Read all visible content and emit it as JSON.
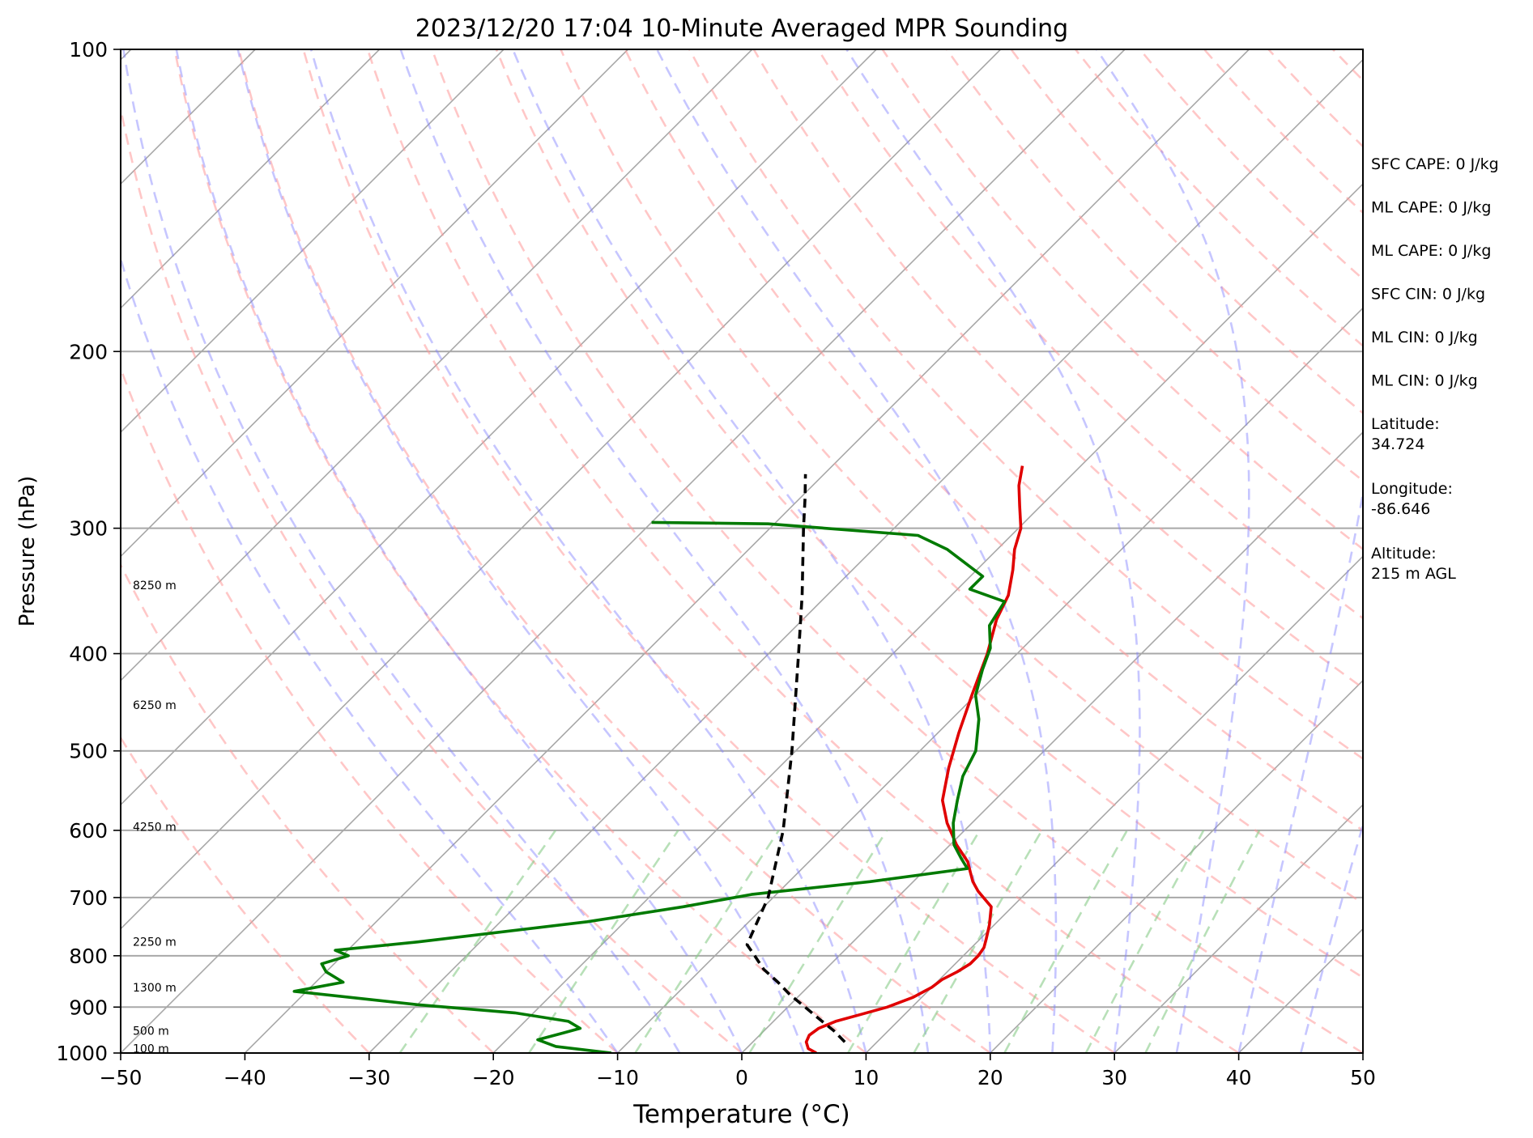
{
  "chart_data": {
    "type": "line",
    "title": "2023/12/20 17:04 10-Minute Averaged MPR Sounding",
    "xlabel": "Temperature (°C)",
    "ylabel": "Pressure (hPa)",
    "xlim": [
      -50,
      50
    ],
    "ylim": [
      1000,
      100
    ],
    "y_scale": "log",
    "x_ticks": [
      -50,
      -40,
      -30,
      -20,
      -10,
      0,
      10,
      20,
      30,
      40,
      50
    ],
    "x_tick_labels": [
      "−50",
      "−40",
      "−30",
      "−20",
      "−10",
      "0",
      "10",
      "20",
      "30",
      "40",
      "50"
    ],
    "y_ticks": [
      1000,
      900,
      800,
      700,
      600,
      500,
      400,
      300,
      200,
      100
    ],
    "y_tick_labels": [
      "1000",
      "900",
      "800",
      "700",
      "600",
      "500",
      "400",
      "300",
      "200",
      "100"
    ],
    "grid": true,
    "skew": 45,
    "colors": {
      "temperature": "#e00000",
      "dewpoint": "#007a00",
      "parcel": "#000000",
      "isotherm": "#a8a8a8",
      "dry_adiabat": "#ff9999",
      "moist_adiabat": "#8080ff",
      "mixing_ratio": "#88cc88",
      "grid": "#a8a8a8"
    },
    "series": [
      {
        "key": "temperature",
        "points": [
          [
            1000,
            6.0
          ],
          [
            990,
            5.0
          ],
          [
            975,
            4.3
          ],
          [
            960,
            4.0
          ],
          [
            945,
            4.2
          ],
          [
            930,
            5.0
          ],
          [
            915,
            6.5
          ],
          [
            900,
            8.0
          ],
          [
            880,
            9.3
          ],
          [
            860,
            10.0
          ],
          [
            845,
            10.2
          ],
          [
            830,
            10.8
          ],
          [
            815,
            11.2
          ],
          [
            800,
            11.2
          ],
          [
            785,
            11.0
          ],
          [
            770,
            10.5
          ],
          [
            745,
            9.6
          ],
          [
            715,
            8.3
          ],
          [
            690,
            6.0
          ],
          [
            675,
            4.8
          ],
          [
            660,
            3.8
          ],
          [
            645,
            2.8
          ],
          [
            620,
            0.5
          ],
          [
            590,
            -2.0
          ],
          [
            560,
            -4.2
          ],
          [
            520,
            -6.3
          ],
          [
            480,
            -8.3
          ],
          [
            440,
            -10.3
          ],
          [
            400,
            -12.4
          ],
          [
            370,
            -14.4
          ],
          [
            350,
            -15.4
          ],
          [
            330,
            -17.1
          ],
          [
            315,
            -18.6
          ],
          [
            300,
            -19.8
          ],
          [
            285,
            -21.7
          ],
          [
            272,
            -23.4
          ],
          [
            260,
            -24.7
          ]
        ]
      },
      {
        "key": "dewpoint",
        "points": [
          [
            1000,
            -10.5
          ],
          [
            985,
            -15.5
          ],
          [
            970,
            -17.5
          ],
          [
            955,
            -16.0
          ],
          [
            945,
            -15.0
          ],
          [
            930,
            -16.5
          ],
          [
            912,
            -21.5
          ],
          [
            895,
            -30.0
          ],
          [
            868,
            -41.0
          ],
          [
            850,
            -37.8
          ],
          [
            830,
            -40.0
          ],
          [
            815,
            -41.0
          ],
          [
            800,
            -39.5
          ],
          [
            790,
            -41.0
          ],
          [
            775,
            -35.0
          ],
          [
            740,
            -23.0
          ],
          [
            715,
            -16.5
          ],
          [
            695,
            -12.0
          ],
          [
            675,
            -3.5
          ],
          [
            655,
            3.3
          ],
          [
            640,
            2.0
          ],
          [
            620,
            0.3
          ],
          [
            590,
            -1.5
          ],
          [
            560,
            -3.0
          ],
          [
            530,
            -4.5
          ],
          [
            500,
            -5.5
          ],
          [
            465,
            -7.8
          ],
          [
            440,
            -10.0
          ],
          [
            415,
            -11.5
          ],
          [
            395,
            -12.6
          ],
          [
            375,
            -14.5
          ],
          [
            355,
            -15.2
          ],
          [
            345,
            -19.0
          ],
          [
            335,
            -19.0
          ],
          [
            315,
            -24.0
          ],
          [
            305,
            -27.5
          ],
          [
            297,
            -40.5
          ],
          [
            296,
            -50.0
          ]
        ]
      },
      {
        "key": "parcel",
        "points": [
          [
            975,
            7.4
          ],
          [
            950,
            5.6
          ],
          [
            925,
            3.5
          ],
          [
            900,
            1.4
          ],
          [
            875,
            -0.8
          ],
          [
            850,
            -2.8
          ],
          [
            825,
            -5.0
          ],
          [
            800,
            -6.8
          ],
          [
            780,
            -8.3
          ],
          [
            700,
            -10.4
          ],
          [
            600,
            -14.6
          ],
          [
            500,
            -20.3
          ],
          [
            400,
            -27.6
          ],
          [
            350,
            -32.0
          ],
          [
            300,
            -37.3
          ],
          [
            280,
            -39.6
          ],
          [
            265,
            -41.5
          ]
        ]
      }
    ],
    "height_labels": [
      {
        "pressure": 990,
        "text": "100 m"
      },
      {
        "pressure": 950,
        "text": "500 m"
      },
      {
        "pressure": 860,
        "text": "1300 m"
      },
      {
        "pressure": 775,
        "text": "2250 m"
      },
      {
        "pressure": 595,
        "text": "4250 m"
      },
      {
        "pressure": 450,
        "text": "6250 m"
      },
      {
        "pressure": 342,
        "text": "8250 m"
      }
    ]
  },
  "info_panel": [
    {
      "label": "SFC CAPE: 0 J/kg"
    },
    {
      "label": "ML CAPE: 0 J/kg"
    },
    {
      "label": "ML CAPE: 0 J/kg"
    },
    {
      "label": "SFC CIN: 0 J/kg"
    },
    {
      "label": "ML CIN: 0 J/kg"
    },
    {
      "label": "ML CIN: 0 J/kg"
    },
    {
      "label": "Latitude:",
      "value": "34.724"
    },
    {
      "label": "Longitude:",
      "value": "-86.646"
    },
    {
      "label": "Altitude:",
      "value": "215 m AGL"
    }
  ]
}
